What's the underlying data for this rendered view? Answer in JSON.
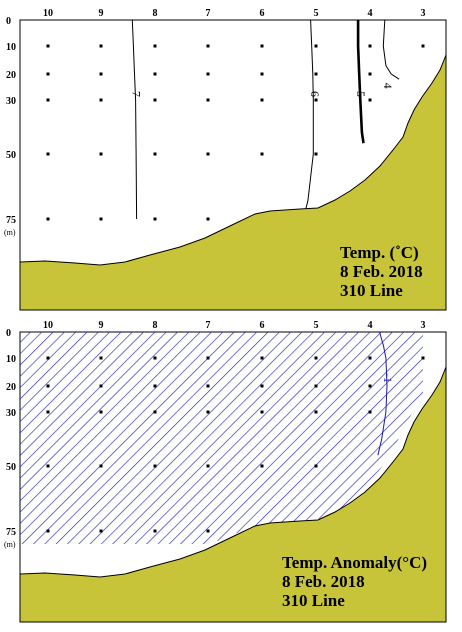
{
  "chart_data": [
    {
      "type": "contour",
      "stations": [
        "10",
        "9",
        "8",
        "7",
        "6",
        "5",
        "4",
        "3"
      ],
      "depth_ticks": [
        "0",
        "10",
        "20",
        "30",
        "50",
        "75"
      ],
      "depth_unit": "(m)",
      "sample_points": {
        "10": [
          10,
          20,
          30,
          50,
          75
        ],
        "9": [
          10,
          20,
          30,
          50,
          75
        ],
        "8": [
          10,
          20,
          30,
          50,
          75
        ],
        "7": [
          10,
          20,
          30,
          50,
          75
        ],
        "6": [
          10,
          20,
          30,
          50
        ],
        "5": [
          10,
          20,
          30,
          50
        ],
        "4": [
          10,
          20,
          30
        ],
        "3": [
          10
        ]
      },
      "contours": [
        {
          "label": "7",
          "style": "thin",
          "points": [
            [
              8.42,
              0
            ],
            [
              8.4,
              10
            ],
            [
              8.38,
              20
            ],
            [
              8.36,
              30
            ],
            [
              8.35,
              50
            ],
            [
              8.34,
              75
            ]
          ]
        },
        {
          "label": "6",
          "style": "thin",
          "points": [
            [
              5.1,
              0
            ],
            [
              5.08,
              10
            ],
            [
              5.06,
              20
            ],
            [
              5.05,
              30
            ],
            [
              5.05,
              50
            ],
            [
              5.15,
              68
            ],
            [
              5.3,
              80
            ]
          ]
        },
        {
          "label": "5",
          "style": "bold",
          "points": [
            [
              4.22,
              0
            ],
            [
              4.22,
              10
            ],
            [
              4.2,
              20
            ],
            [
              4.18,
              30
            ],
            [
              4.15,
              42
            ],
            [
              4.12,
              46
            ]
          ]
        },
        {
          "label": "4",
          "style": "thin",
          "points": [
            [
              3.72,
              0
            ],
            [
              3.75,
              10
            ],
            [
              3.7,
              17
            ],
            [
              3.6,
              20
            ],
            [
              3.45,
              22
            ]
          ]
        }
      ],
      "annotation": [
        "Temp. (˚C)",
        "8 Feb. 2018",
        "310 Line"
      ],
      "colors": {
        "seabed": "#c8c43a",
        "contour": "#000000"
      }
    },
    {
      "type": "contour",
      "stations": [
        "10",
        "9",
        "8",
        "7",
        "6",
        "5",
        "4",
        "3"
      ],
      "depth_ticks": [
        "0",
        "10",
        "20",
        "30",
        "50",
        "75"
      ],
      "depth_unit": "(m)",
      "sample_points": {
        "10": [
          10,
          20,
          30,
          50,
          75
        ],
        "9": [
          10,
          20,
          30,
          50,
          75
        ],
        "8": [
          10,
          20,
          30,
          50,
          75
        ],
        "7": [
          10,
          20,
          30,
          50,
          75
        ],
        "6": [
          10,
          20,
          30,
          50
        ],
        "5": [
          10,
          20,
          30,
          50
        ],
        "4": [
          10,
          20,
          30
        ],
        "3": [
          10
        ]
      },
      "contours": [
        {
          "label": "-1",
          "style": "thin",
          "points": [
            [
              3.82,
              0
            ],
            [
              3.75,
              5
            ],
            [
              3.7,
              10
            ],
            [
              3.68,
              20
            ],
            [
              3.7,
              30
            ],
            [
              3.78,
              40
            ],
            [
              3.85,
              46
            ]
          ]
        }
      ],
      "hatched_region": "anomaly below -1",
      "annotation": [
        "Temp. Anomaly(°C)",
        "8 Feb. 2018",
        "310 Line"
      ],
      "colors": {
        "seabed": "#c8c43a",
        "contour": "#1a1aa8",
        "hatch": "#2a2ab0"
      }
    }
  ]
}
